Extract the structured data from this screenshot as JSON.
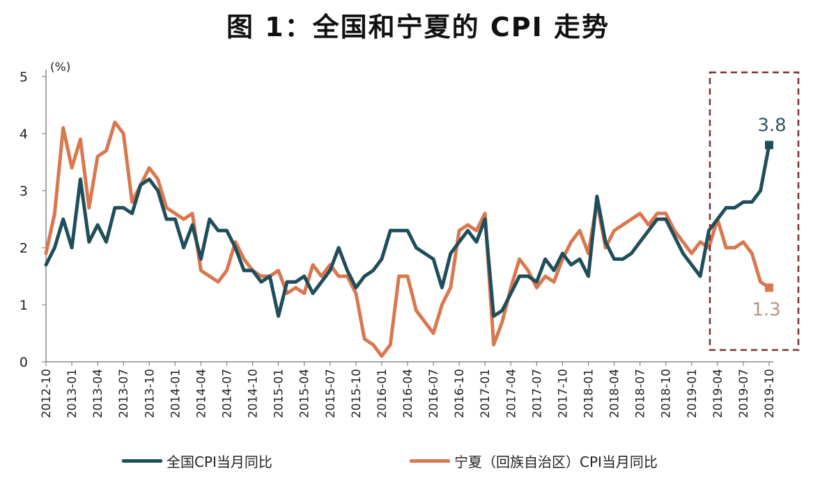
{
  "title": "图 1：全国和宁夏的 CPI 走势",
  "unit_label": "(%)",
  "colors": {
    "national": "#1f4e5a",
    "ningxia": "#d9774e",
    "box": "#7a2f2f"
  },
  "annotations": {
    "national_last": "3.8",
    "ningxia_last": "1.3"
  },
  "chart_data": {
    "type": "line",
    "title": "图 1：全国和宁夏的 CPI 走势",
    "ylabel": "(%)",
    "ylim": [
      0,
      5
    ],
    "yticks": [
      0,
      1,
      2,
      3,
      4,
      5
    ],
    "grid": false,
    "legend_position": "bottom",
    "x_tick_labels": [
      "2012-10",
      "2013-01",
      "2013-04",
      "2013-07",
      "2013-10",
      "2014-01",
      "2014-04",
      "2014-07",
      "2014-10",
      "2015-01",
      "2015-04",
      "2015-07",
      "2015-10",
      "2016-01",
      "2016-04",
      "2016-07",
      "2016-10",
      "2017-01",
      "2017-04",
      "2017-07",
      "2017-10",
      "2018-01",
      "2018-04",
      "2018-07",
      "2018-10",
      "2019-01",
      "2019-04",
      "2019-07",
      "2019-10"
    ],
    "x": [
      "2012-10",
      "2012-11",
      "2012-12",
      "2013-01",
      "2013-02",
      "2013-03",
      "2013-04",
      "2013-05",
      "2013-06",
      "2013-07",
      "2013-08",
      "2013-09",
      "2013-10",
      "2013-11",
      "2013-12",
      "2014-01",
      "2014-02",
      "2014-03",
      "2014-04",
      "2014-05",
      "2014-06",
      "2014-07",
      "2014-08",
      "2014-09",
      "2014-10",
      "2014-11",
      "2014-12",
      "2015-01",
      "2015-02",
      "2015-03",
      "2015-04",
      "2015-05",
      "2015-06",
      "2015-07",
      "2015-08",
      "2015-09",
      "2015-10",
      "2015-11",
      "2015-12",
      "2016-01",
      "2016-02",
      "2016-03",
      "2016-04",
      "2016-05",
      "2016-06",
      "2016-07",
      "2016-08",
      "2016-09",
      "2016-10",
      "2016-11",
      "2016-12",
      "2017-01",
      "2017-02",
      "2017-03",
      "2017-04",
      "2017-05",
      "2017-06",
      "2017-07",
      "2017-08",
      "2017-09",
      "2017-10",
      "2017-11",
      "2017-12",
      "2018-01",
      "2018-02",
      "2018-03",
      "2018-04",
      "2018-05",
      "2018-06",
      "2018-07",
      "2018-08",
      "2018-09",
      "2018-10",
      "2018-11",
      "2018-12",
      "2019-01",
      "2019-02",
      "2019-03",
      "2019-04",
      "2019-05",
      "2019-06",
      "2019-07",
      "2019-08",
      "2019-09",
      "2019-10"
    ],
    "series": [
      {
        "name": "全国CPI当月同比",
        "values": [
          1.7,
          2.0,
          2.5,
          2.0,
          3.2,
          2.1,
          2.4,
          2.1,
          2.7,
          2.7,
          2.6,
          3.1,
          3.2,
          3.0,
          2.5,
          2.5,
          2.0,
          2.4,
          1.8,
          2.5,
          2.3,
          2.3,
          2.0,
          1.6,
          1.6,
          1.4,
          1.5,
          0.8,
          1.4,
          1.4,
          1.5,
          1.2,
          1.4,
          1.6,
          2.0,
          1.6,
          1.3,
          1.5,
          1.6,
          1.8,
          2.3,
          2.3,
          2.3,
          2.0,
          1.9,
          1.8,
          1.3,
          1.9,
          2.1,
          2.3,
          2.1,
          2.5,
          0.8,
          0.9,
          1.2,
          1.5,
          1.5,
          1.4,
          1.8,
          1.6,
          1.9,
          1.7,
          1.8,
          1.5,
          2.9,
          2.1,
          1.8,
          1.8,
          1.9,
          2.1,
          2.3,
          2.5,
          2.5,
          2.2,
          1.9,
          1.7,
          1.5,
          2.3,
          2.5,
          2.7,
          2.7,
          2.8,
          2.8,
          3.0,
          3.8
        ]
      },
      {
        "name": "宁夏（回族自治区）CPI当月同比",
        "values": [
          1.9,
          2.6,
          4.1,
          3.4,
          3.9,
          2.7,
          3.6,
          3.7,
          4.2,
          4.0,
          2.8,
          3.1,
          3.4,
          3.2,
          2.7,
          2.6,
          2.5,
          2.6,
          1.6,
          1.5,
          1.4,
          1.6,
          2.1,
          1.8,
          1.6,
          1.5,
          1.5,
          1.6,
          1.2,
          1.3,
          1.2,
          1.7,
          1.5,
          1.7,
          1.5,
          1.5,
          1.2,
          0.4,
          0.3,
          0.1,
          0.3,
          1.5,
          1.5,
          0.9,
          0.7,
          0.5,
          1.0,
          1.3,
          2.3,
          2.4,
          2.3,
          2.6,
          0.3,
          0.7,
          1.3,
          1.8,
          1.6,
          1.3,
          1.5,
          1.4,
          1.8,
          2.1,
          2.3,
          1.9,
          2.8,
          2.0,
          2.3,
          2.4,
          2.5,
          2.6,
          2.4,
          2.6,
          2.6,
          2.3,
          2.1,
          1.9,
          2.1,
          2.0,
          2.5,
          2.0,
          2.0,
          2.1,
          1.9,
          1.4,
          1.3
        ]
      }
    ]
  },
  "legend": [
    {
      "label": "全国CPI当月同比"
    },
    {
      "label": "宁夏（回族自治区）CPI当月同比"
    }
  ]
}
